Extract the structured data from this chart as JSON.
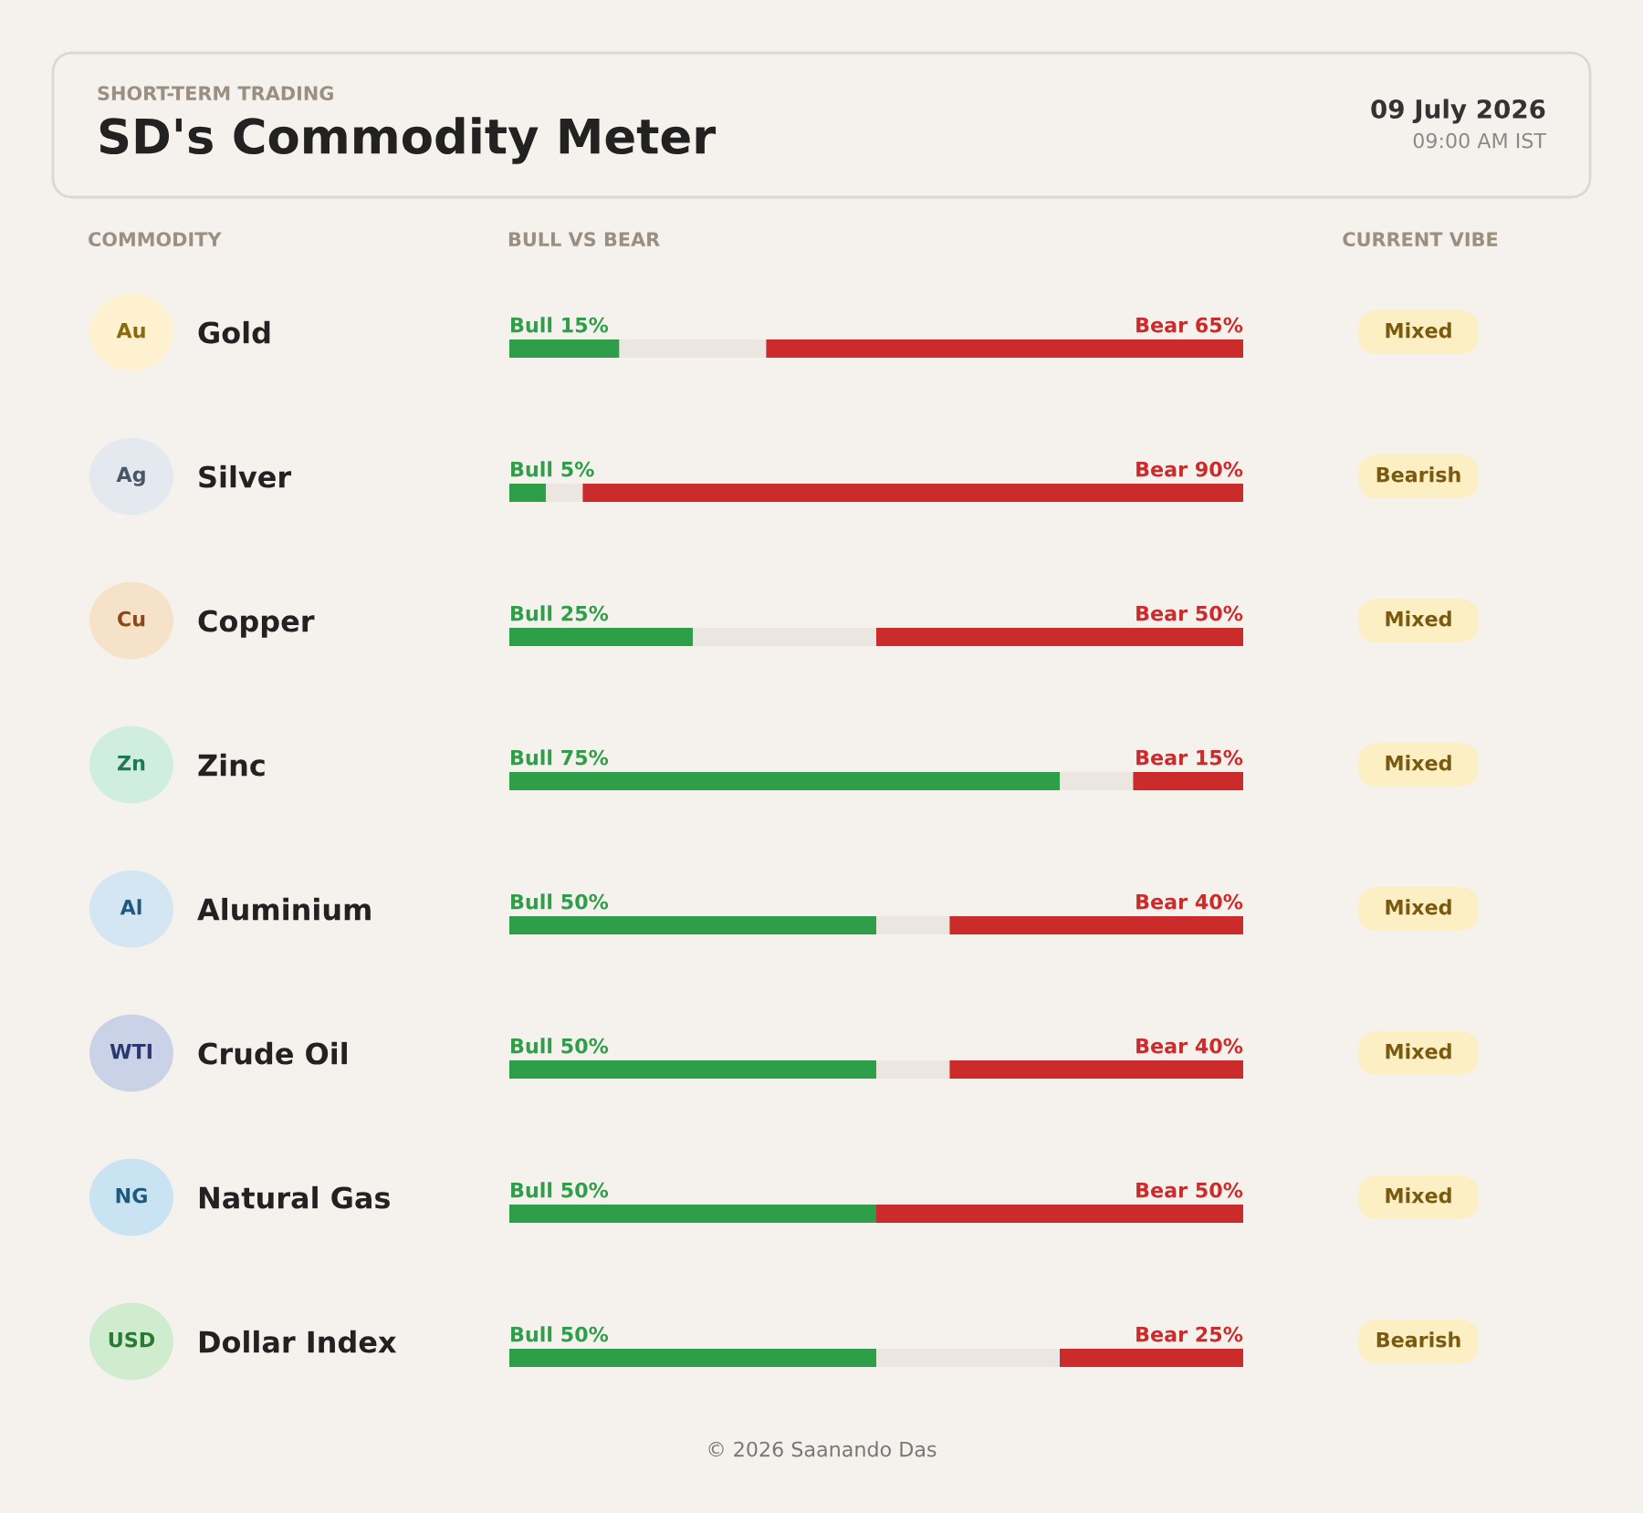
{
  "chart_data": {
    "type": "bar",
    "orientation": "horizontal",
    "stacked": true,
    "title": "SD's Commodity Meter",
    "subtitle": "SHORT-TERM TRADING",
    "categories": [
      "Gold",
      "Silver",
      "Copper",
      "Zinc",
      "Aluminium",
      "Crude Oil",
      "Natural Gas",
      "Dollar Index"
    ],
    "series": [
      {
        "color": "#2e9e48",
        "values": [
          15,
          5,
          25,
          75,
          50,
          50,
          50,
          50
        ],
        "value_labels": [
          "Bull 15%",
          "Bull 5%",
          "Bull 25%",
          "Bull 75%",
          "Bull 50%",
          "Bull 50%",
          "Bull 50%",
          "Bull 50%"
        ]
      },
      {
        "color": "#ebe7e0",
        "values": [
          20,
          5,
          25,
          10,
          10,
          10,
          0,
          25
        ]
      },
      {
        "color": "#cc2b2b",
        "values": [
          65,
          90,
          50,
          15,
          40,
          40,
          50,
          25
        ],
        "value_labels": [
          "Bear 65%",
          "Bear 90%",
          "Bear 50%",
          "Bear 15%",
          "Bear 40%",
          "Bear 40%",
          "Bear 50%",
          "Bear 25%"
        ]
      }
    ],
    "xlim": [
      0,
      100
    ],
    "tick_labels": "y",
    "annotations": [
      "09 July 2026",
      "09:00 AM IST",
      "COMMODITY",
      "BULL VS BEAR",
      "CURRENT VIBE",
      "Au",
      "Ag",
      "Cu",
      "Zn",
      "Al",
      "WTI",
      "NG",
      "USD",
      "Mixed",
      "Bearish",
      "Mixed",
      "Mixed",
      "Mixed",
      "Mixed",
      "Mixed",
      "Bearish",
      "© 2026 Saanando Das"
    ]
  }
}
